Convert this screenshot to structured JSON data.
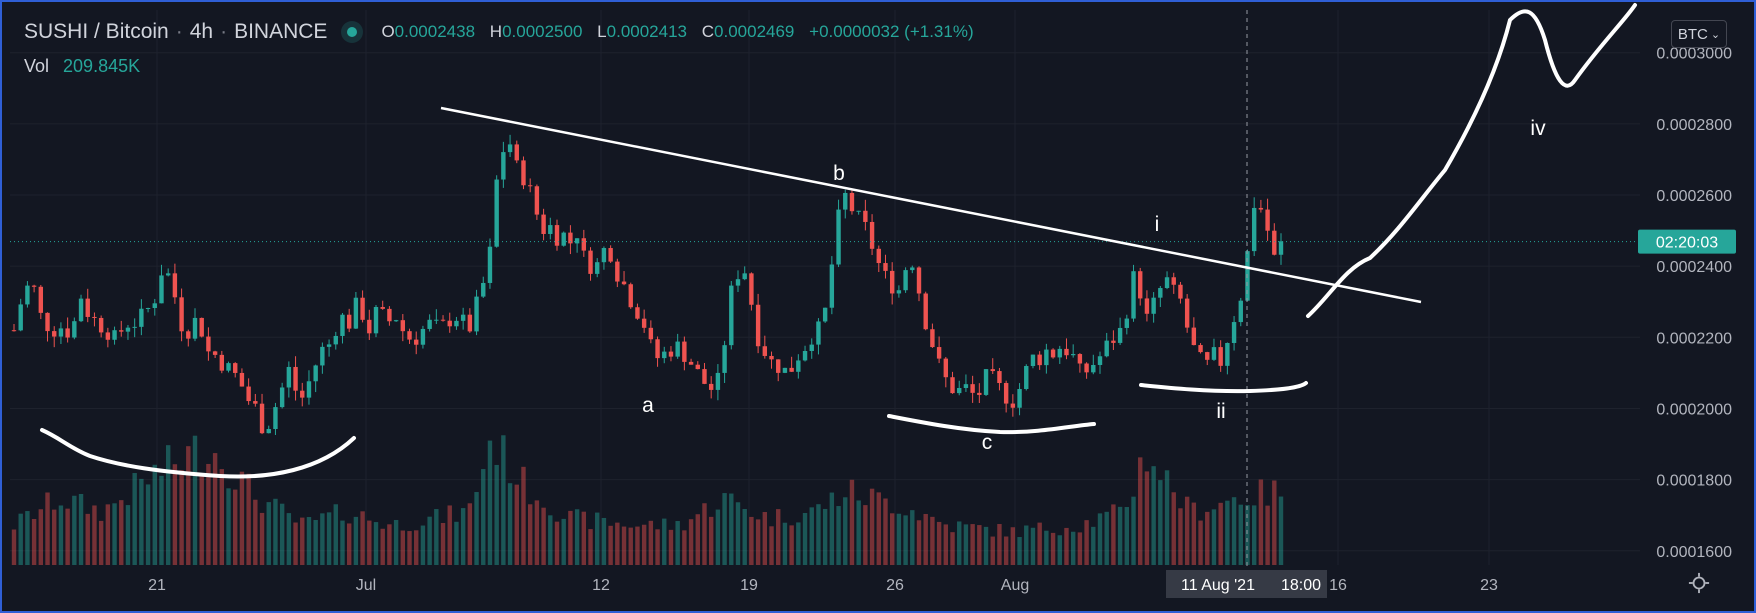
{
  "header": {
    "symbol": "SUSHI / Bitcoin",
    "sep": "·",
    "interval": "4h",
    "exchange": "BINANCE",
    "open_key": "O",
    "open": "0.0002438",
    "high_key": "H",
    "high": "0.0002500",
    "low_key": "L",
    "low": "0.0002413",
    "close_key": "C",
    "close": "0.0002469",
    "change": "+0.0000032 (+1.31%)",
    "vol_label": "Vol",
    "vol_value": "209.845K",
    "currency_button": "BTC",
    "countdown": "02:20:03"
  },
  "colors": {
    "up": "#26a69a",
    "down": "#ef5350",
    "background": "#131722",
    "grid": "#1e222d",
    "annotation": "#ffffff",
    "frame": "#2f5fd6"
  },
  "chart_data": {
    "type": "candlestick",
    "title": "SUSHI / Bitcoin · 4h · BINANCE",
    "ylim": [
      0.000156,
      0.000312
    ],
    "y_ticks": [
      "0.0001600",
      "0.0001800",
      "0.0002000",
      "0.0002200",
      "0.0002400",
      "0.0002600",
      "0.0002800",
      "0.0003000"
    ],
    "x_ticks": [
      "21",
      "Jul",
      "12",
      "19",
      "26",
      "Aug",
      "16",
      "23"
    ],
    "crosshair_date_label": "11 Aug '21",
    "crosshair_time_label": "18:00",
    "price_line": 0.0002469,
    "price_path": [
      [
        0,
        0.000222
      ],
      [
        8,
        0.000232
      ],
      [
        16,
        0.000236
      ],
      [
        24,
        0.000226
      ],
      [
        34,
        0.000222
      ],
      [
        42,
        0.000223
      ],
      [
        52,
        0.000221
      ],
      [
        60,
        0.000232
      ],
      [
        68,
        0.000226
      ],
      [
        76,
        0.000224
      ],
      [
        84,
        0.000222
      ],
      [
        92,
        0.000219
      ],
      [
        100,
        0.000224
      ],
      [
        108,
        0.000224
      ],
      [
        116,
        0.000226
      ],
      [
        126,
        0.00023
      ],
      [
        134,
        0.00024
      ],
      [
        142,
        0.000236
      ],
      [
        150,
        0.000224
      ],
      [
        158,
        0.000222
      ],
      [
        166,
        0.000226
      ],
      [
        174,
        0.000216
      ],
      [
        182,
        0.000215
      ],
      [
        190,
        0.000212
      ],
      [
        198,
        0.00021
      ],
      [
        206,
        0.000206
      ],
      [
        212,
        0.000202
      ],
      [
        218,
        0.0002
      ],
      [
        224,
        0.000195
      ],
      [
        230,
        0.000196
      ],
      [
        236,
        0.000201
      ],
      [
        242,
        0.000206
      ],
      [
        248,
        0.000211
      ],
      [
        254,
        0.000205
      ],
      [
        260,
        0.000203
      ],
      [
        268,
        0.000209
      ],
      [
        276,
        0.000216
      ],
      [
        284,
        0.000218
      ],
      [
        294,
        0.000226
      ],
      [
        302,
        0.000224
      ],
      [
        310,
        0.00023
      ],
      [
        320,
        0.000222
      ],
      [
        328,
        0.000228
      ],
      [
        336,
        0.000224
      ],
      [
        344,
        0.000226
      ],
      [
        352,
        0.000221
      ],
      [
        360,
        0.000219
      ],
      [
        368,
        0.000222
      ],
      [
        376,
        0.000224
      ],
      [
        384,
        0.000222
      ],
      [
        392,
        0.000225
      ],
      [
        400,
        0.000226
      ],
      [
        410,
        0.000222
      ],
      [
        416,
        0.000228
      ],
      [
        422,
        0.000234
      ],
      [
        428,
        0.00024
      ],
      [
        434,
        0.000262
      ],
      [
        440,
        0.000272
      ],
      [
        446,
        0.000276
      ],
      [
        452,
        0.000268
      ],
      [
        458,
        0.000266
      ],
      [
        464,
        0.000262
      ],
      [
        470,
        0.000256
      ],
      [
        476,
        0.00025
      ],
      [
        482,
        0.000252
      ],
      [
        488,
        0.000248
      ],
      [
        494,
        0.00025
      ],
      [
        500,
        0.000245
      ],
      [
        506,
        0.000252
      ],
      [
        512,
        0.000243
      ],
      [
        518,
        0.000241
      ],
      [
        524,
        0.000239
      ],
      [
        530,
        0.000244
      ],
      [
        536,
        0.000246
      ],
      [
        542,
        0.000239
      ],
      [
        548,
        0.000236
      ],
      [
        554,
        0.000232
      ],
      [
        560,
        0.000228
      ],
      [
        566,
        0.000226
      ],
      [
        572,
        0.000219
      ],
      [
        578,
        0.000214
      ],
      [
        584,
        0.000215
      ],
      [
        590,
        0.000216
      ],
      [
        596,
        0.000218
      ],
      [
        602,
        0.000216
      ],
      [
        608,
        0.000214
      ],
      [
        614,
        0.000211
      ],
      [
        620,
        0.000208
      ],
      [
        626,
        0.000206
      ],
      [
        632,
        0.000205
      ],
      [
        638,
        0.000211
      ],
      [
        644,
        0.00023
      ],
      [
        650,
        0.000236
      ],
      [
        656,
        0.000241
      ],
      [
        662,
        0.000236
      ],
      [
        668,
        0.000222
      ],
      [
        674,
        0.000218
      ],
      [
        680,
        0.000214
      ],
      [
        686,
        0.000212
      ],
      [
        692,
        0.000212
      ],
      [
        698,
        0.000209
      ],
      [
        704,
        0.000214
      ],
      [
        710,
        0.000216
      ],
      [
        716,
        0.000219
      ],
      [
        722,
        0.000222
      ],
      [
        728,
        0.000222
      ],
      [
        734,
        0.000232
      ],
      [
        740,
        0.000248
      ],
      [
        746,
        0.000258
      ],
      [
        752,
        0.000261
      ],
      [
        758,
        0.000252
      ],
      [
        764,
        0.000254
      ],
      [
        770,
        0.000248
      ],
      [
        776,
        0.000244
      ],
      [
        782,
        0.000238
      ],
      [
        788,
        0.000236
      ],
      [
        794,
        0.000234
      ],
      [
        800,
        0.000233
      ],
      [
        806,
        0.000244
      ],
      [
        812,
        0.00024
      ],
      [
        818,
        0.000229
      ],
      [
        824,
        0.000222
      ],
      [
        830,
        0.000216
      ],
      [
        836,
        0.00021
      ],
      [
        842,
        0.000207
      ],
      [
        848,
        0.000205
      ],
      [
        854,
        0.000205
      ],
      [
        860,
        0.000206
      ],
      [
        866,
        0.000203
      ],
      [
        872,
        0.000205
      ],
      [
        878,
        0.00021
      ],
      [
        884,
        0.000207
      ],
      [
        890,
        0.000205
      ],
      [
        896,
        0.000203
      ],
      [
        902,
        0.000202
      ],
      [
        908,
        0.000207
      ],
      [
        914,
        0.000212
      ],
      [
        920,
        0.000215
      ],
      [
        926,
        0.000214
      ],
      [
        932,
        0.000217
      ],
      [
        938,
        0.000215
      ],
      [
        944,
        0.000218
      ],
      [
        950,
        0.000216
      ],
      [
        956,
        0.000214
      ],
      [
        962,
        0.000209
      ],
      [
        968,
        0.000211
      ],
      [
        974,
        0.000213
      ],
      [
        980,
        0.000215
      ],
      [
        986,
        0.000218
      ],
      [
        992,
        0.00022
      ],
      [
        998,
        0.000222
      ],
      [
        1004,
        0.000229
      ],
      [
        1010,
        0.000238
      ],
      [
        1016,
        0.000232
      ],
      [
        1022,
        0.000224
      ],
      [
        1028,
        0.00023
      ],
      [
        1034,
        0.000234
      ],
      [
        1040,
        0.000236
      ],
      [
        1046,
        0.000232
      ],
      [
        1052,
        0.00023
      ],
      [
        1058,
        0.000222
      ],
      [
        1064,
        0.000216
      ],
      [
        1070,
        0.000213
      ],
      [
        1076,
        0.000212
      ],
      [
        1082,
        0.000215
      ],
      [
        1088,
        0.000213
      ],
      [
        1094,
        0.00022
      ],
      [
        1100,
        0.000226
      ],
      [
        1106,
        0.000232
      ],
      [
        1112,
        0.000244
      ],
      [
        1118,
        0.000258
      ],
      [
        1124,
        0.000256
      ],
      [
        1130,
        0.00025
      ],
      [
        1136,
        0.000242
      ],
      [
        1142,
        0.000246
      ]
    ],
    "volume_path": [
      [
        0,
        0.3
      ],
      [
        40,
        0.5
      ],
      [
        80,
        0.4
      ],
      [
        130,
        0.7
      ],
      [
        175,
        0.9
      ],
      [
        220,
        0.5
      ],
      [
        260,
        0.3
      ],
      [
        300,
        0.4
      ],
      [
        340,
        0.3
      ],
      [
        380,
        0.35
      ],
      [
        410,
        0.4
      ],
      [
        430,
        0.95
      ],
      [
        460,
        0.6
      ],
      [
        500,
        0.35
      ],
      [
        560,
        0.3
      ],
      [
        600,
        0.3
      ],
      [
        640,
        0.5
      ],
      [
        680,
        0.35
      ],
      [
        720,
        0.4
      ],
      [
        750,
        0.55
      ],
      [
        800,
        0.45
      ],
      [
        840,
        0.3
      ],
      [
        900,
        0.25
      ],
      [
        960,
        0.3
      ],
      [
        1000,
        0.4
      ],
      [
        1020,
        0.85
      ],
      [
        1060,
        0.4
      ],
      [
        1100,
        0.5
      ],
      [
        1142,
        0.55
      ]
    ],
    "trendline": {
      "start": [
        "~Jul 4",
        0.000282
      ],
      "end": [
        "~Aug 20",
        0.000231
      ]
    },
    "annotations": {
      "wave_labels": [
        "a",
        "b",
        "c",
        "i",
        "ii",
        "iv"
      ]
    },
    "grid": true,
    "legend_position": "top-left"
  }
}
